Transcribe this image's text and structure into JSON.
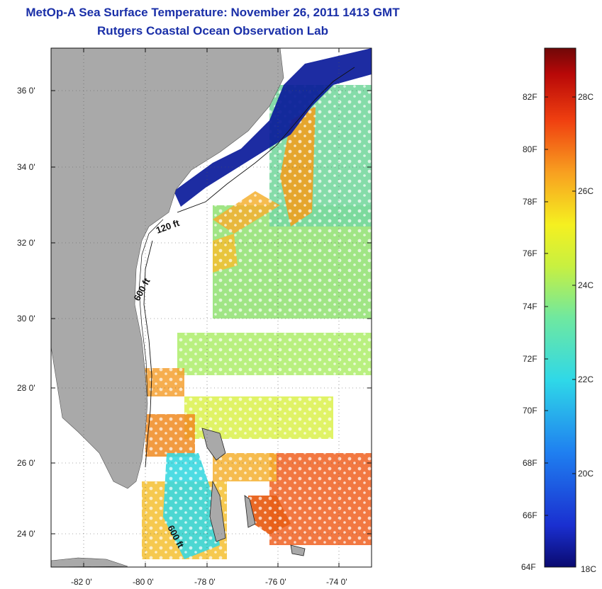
{
  "header": {
    "title": "MetOp-A Sea Surface Temperature:  November 26, 2011 1413 GMT",
    "subtitle": "Rutgers Coastal Ocean Observation Lab"
  },
  "map": {
    "lon_labels": [
      "-82 0'",
      "-80 0'",
      "-78 0'",
      "-76 0'",
      "-74 0'"
    ],
    "lat_labels": [
      "36 0'",
      "34 0'",
      "32 0'",
      "30 0'",
      "28 0'",
      "26 0'",
      "24 0'"
    ],
    "depth_labels": [
      "120 ft",
      "600 ft",
      "600 ft"
    ],
    "colors": {
      "land": "#a9a9a9",
      "cloud": "#ffffff",
      "warm": "#f07a20",
      "mid": "#8fe070",
      "cool": "#0a1a9a"
    }
  },
  "colorbar": {
    "fahrenheit": [
      "82F",
      "80F",
      "78F",
      "76F",
      "74F",
      "72F",
      "70F",
      "68F",
      "66F",
      "64F"
    ],
    "celsius": [
      "28C",
      "26C",
      "24C",
      "22C",
      "20C",
      "18C"
    ],
    "min_c": 18,
    "max_c": 29
  }
}
